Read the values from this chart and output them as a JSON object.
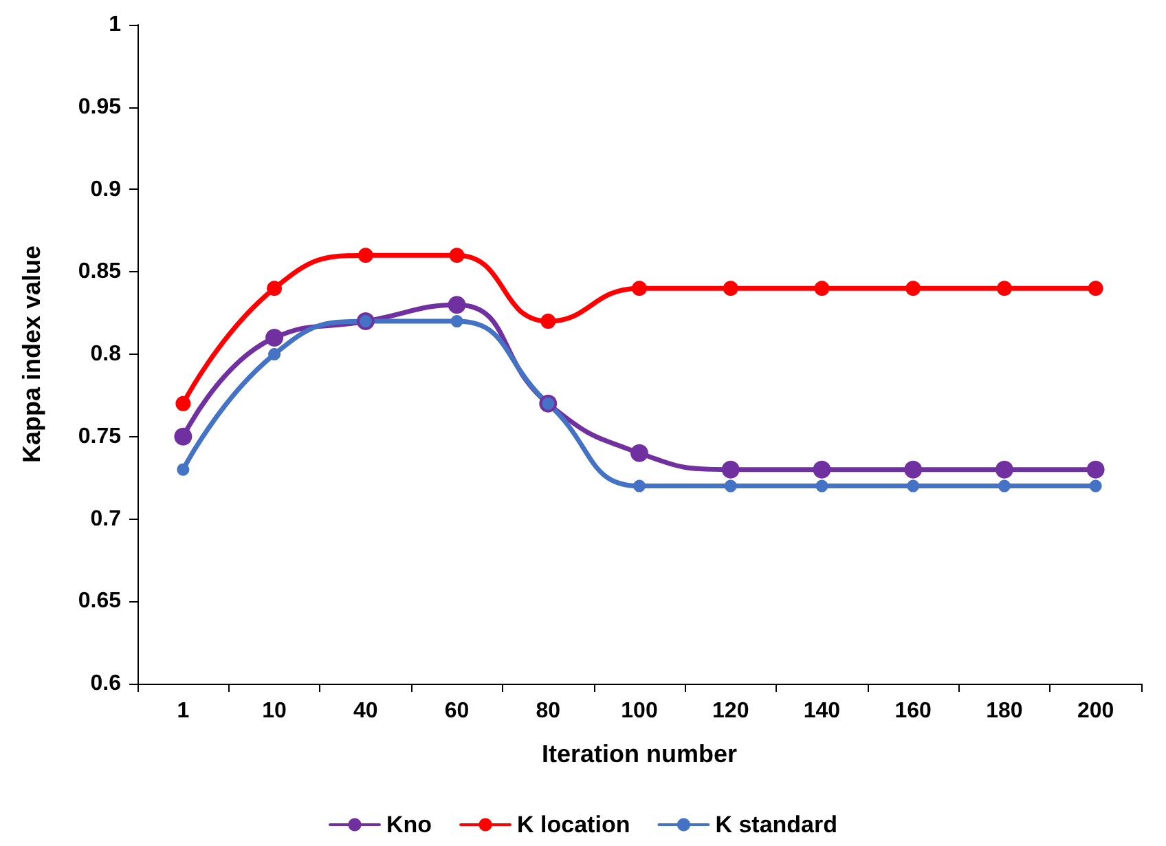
{
  "chart_data": {
    "type": "line",
    "xlabel": "Iteration number",
    "ylabel": "Kappa index value",
    "categories": [
      "1",
      "10",
      "40",
      "60",
      "80",
      "100",
      "120",
      "140",
      "160",
      "180",
      "200"
    ],
    "series": [
      {
        "name": "Kno",
        "color": "#7030a0",
        "values": [
          0.75,
          0.81,
          0.82,
          0.83,
          0.77,
          0.74,
          0.73,
          0.73,
          0.73,
          0.73,
          0.73
        ]
      },
      {
        "name": "K location",
        "color": "#ff0000",
        "values": [
          0.77,
          0.84,
          0.86,
          0.86,
          0.82,
          0.84,
          0.84,
          0.84,
          0.84,
          0.84,
          0.84
        ]
      },
      {
        "name": "K standard",
        "color": "#4472c4",
        "values": [
          0.73,
          0.8,
          0.82,
          0.82,
          0.77,
          0.72,
          0.72,
          0.72,
          0.72,
          0.72,
          0.72
        ]
      }
    ],
    "ylim": [
      0.6,
      1
    ],
    "yticks": [
      0.6,
      0.65,
      0.7,
      0.75,
      0.8,
      0.85,
      0.9,
      0.95,
      1
    ],
    "grid": false,
    "legend": "bottom",
    "marker": "circle",
    "line_style": "solid"
  }
}
